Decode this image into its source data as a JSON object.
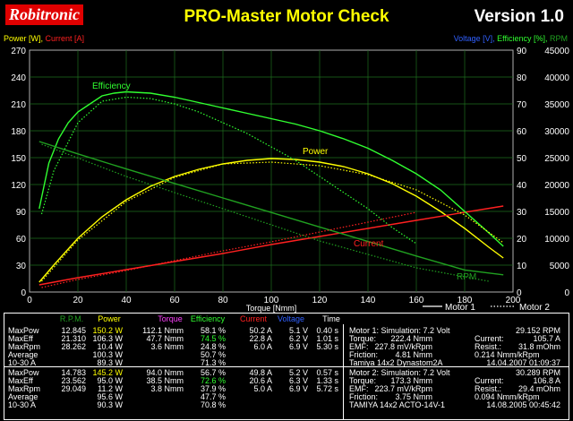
{
  "header": {
    "logo": "Robitronic",
    "title": "PRO-Master Motor Check",
    "version": "Version 1.0"
  },
  "colors": {
    "power": "#ffff00",
    "current": "#ff2020",
    "voltage": "#3060ff",
    "efficiency": "#30ff30",
    "rpm": "#20a020",
    "torque": "#ff40ff"
  },
  "axes": {
    "left_title_power": "Power [W],",
    "left_title_current": "Current [A]",
    "right_title_voltage": "Voltage [V],",
    "right_title_eff": "Efficiency [%],",
    "right_title_rpm": "RPM",
    "xlabel": "Torque [Nmm]"
  },
  "chart_data": {
    "type": "line",
    "xlabel": "Torque [Nmm]",
    "ylabel_left": "Power [W], Current [A]",
    "ylabel_right": "Voltage [V], Efficiency [%], RPM",
    "xlim": [
      0,
      200
    ],
    "xticks": [
      0,
      20,
      40,
      60,
      80,
      100,
      120,
      140,
      160,
      180,
      200
    ],
    "ylim_left": [
      0,
      270
    ],
    "yticks_left": [
      0,
      30,
      60,
      90,
      120,
      150,
      180,
      210,
      240,
      270
    ],
    "ylim_right_voltage_eff": [
      0,
      90
    ],
    "yticks_right_voltage_eff": [
      0,
      10,
      20,
      30,
      40,
      50,
      60,
      70,
      80,
      90
    ],
    "ylim_right_rpm": [
      0,
      45000
    ],
    "yticks_right_rpm": [
      0,
      5000,
      10000,
      15000,
      20000,
      25000,
      30000,
      35000,
      40000,
      45000
    ],
    "grid": true,
    "legend": [
      "Motor 1",
      "Motor 2"
    ],
    "annotations": [
      "Efficiency",
      "Power",
      "Current",
      "RPM"
    ],
    "series": [
      {
        "name": "Power",
        "motor": 1,
        "axis": "left",
        "color": "#ffff00",
        "x": [
          4,
          10,
          20,
          30,
          40,
          50,
          60,
          70,
          80,
          90,
          100,
          110,
          120,
          130,
          140,
          150,
          160,
          170,
          180,
          190,
          196
        ],
        "y": [
          11,
          30,
          60,
          84,
          103,
          118,
          129,
          137,
          143,
          147,
          149,
          148,
          145,
          140,
          132,
          121,
          107,
          90,
          71,
          50,
          38
        ]
      },
      {
        "name": "Current",
        "motor": 1,
        "axis": "left",
        "color": "#ff2020",
        "x": [
          4,
          20,
          40,
          60,
          80,
          100,
          120,
          140,
          160,
          180,
          196
        ],
        "y": [
          8,
          16,
          25,
          34,
          43,
          53,
          62,
          71,
          80,
          89,
          96
        ]
      },
      {
        "name": "Efficiency",
        "motor": 1,
        "axis": "right_pct",
        "color": "#30ff30",
        "x": [
          4,
          8,
          12,
          16,
          20,
          25,
          30,
          35,
          40,
          50,
          60,
          70,
          80,
          90,
          100,
          110,
          120,
          130,
          140,
          150,
          160,
          170,
          180,
          190,
          196
        ],
        "y": [
          31,
          48,
          57,
          63,
          67,
          70,
          73,
          74,
          74.5,
          74,
          72.5,
          70.5,
          68.5,
          66.5,
          64.5,
          62.5,
          60,
          57,
          53.5,
          49,
          44,
          38,
          30,
          22,
          17
        ]
      },
      {
        "name": "RPM",
        "motor": 1,
        "axis": "right_rpm",
        "color": "#20a020",
        "x": [
          4,
          20,
          40,
          60,
          80,
          100,
          120,
          140,
          160,
          180,
          196
        ],
        "y": [
          28000,
          25700,
          22900,
          20200,
          17500,
          14800,
          12100,
          9400,
          6700,
          4100,
          3200
        ]
      },
      {
        "name": "Power",
        "motor": 2,
        "axis": "left",
        "color": "#ffff00",
        "x": [
          5,
          20,
          40,
          60,
          80,
          100,
          120,
          140,
          160,
          180,
          196
        ],
        "y": [
          12,
          58,
          101,
          128,
          143,
          145,
          141,
          131,
          114,
          86,
          55
        ]
      },
      {
        "name": "Current",
        "motor": 2,
        "axis": "left",
        "color": "#ff2020",
        "x": [
          5,
          20,
          40,
          60,
          80,
          100,
          120,
          140,
          160
        ],
        "y": [
          5,
          14,
          24,
          35,
          46,
          56,
          67,
          78,
          89
        ]
      },
      {
        "name": "Efficiency",
        "motor": 2,
        "axis": "right_pct",
        "color": "#30ff30",
        "x": [
          5,
          10,
          20,
          30,
          40,
          50,
          60,
          70,
          80,
          90,
          100,
          110,
          120,
          130,
          140,
          150,
          160
        ],
        "y": [
          29,
          45,
          63,
          71,
          72.5,
          72,
          70,
          67,
          63,
          59,
          54,
          49,
          43,
          37,
          31,
          24,
          18
        ]
      },
      {
        "name": "RPM",
        "motor": 2,
        "axis": "right_rpm",
        "color": "#20a020",
        "x": [
          5,
          40,
          80,
          120,
          160,
          190
        ],
        "y": [
          27500,
          21500,
          15500,
          9500,
          4500,
          2000
        ]
      }
    ]
  },
  "table": {
    "headers": {
      "rpm": "R.P.M.",
      "power": "Power",
      "torque": "Torque",
      "efficiency": "Efficiency",
      "current": "Current",
      "voltage": "Voltage",
      "time": "Time"
    },
    "motor1_rows": [
      {
        "label": "MaxPow",
        "rpm": "12.845",
        "power": "150.2 W",
        "torque": "112.1 Nmm",
        "eff": "58.1 %",
        "current": "50.2 A",
        "voltage": "5.1 V",
        "time": "0.40 s"
      },
      {
        "label": "MaxEff",
        "rpm": "21.310",
        "power": "106.3 W",
        "torque": "47.7 Nmm",
        "eff": "74.5 %",
        "current": "22.8 A",
        "voltage": "6.2 V",
        "time": "1.01 s"
      },
      {
        "label": "MaxRpm",
        "rpm": "28.262",
        "power": "10.4 W",
        "torque": "3.6 Nmm",
        "eff": "24.8 %",
        "current": "6.0 A",
        "voltage": "6.9 V",
        "time": "5.30 s"
      },
      {
        "label": "Average",
        "rpm": "",
        "power": "100.3 W",
        "torque": "",
        "eff": "50.7 %",
        "current": "",
        "voltage": "",
        "time": ""
      },
      {
        "label": "10-30 A",
        "rpm": "",
        "power": "89.3 W",
        "torque": "",
        "eff": "71.3 %",
        "current": "",
        "voltage": "",
        "time": ""
      }
    ],
    "motor2_rows": [
      {
        "label": "MaxPow",
        "rpm": "14.783",
        "power": "145.2 W",
        "torque": "94.0 Nmm",
        "eff": "56.7 %",
        "current": "49.8 A",
        "voltage": "5.2 V",
        "time": "0.57 s"
      },
      {
        "label": "MaxEff",
        "rpm": "23.562",
        "power": "95.0 W",
        "torque": "38.5 Nmm",
        "eff": "72.6 %",
        "current": "20.6 A",
        "voltage": "6.3 V",
        "time": "1.33 s"
      },
      {
        "label": "MaxRpm",
        "rpm": "29.049",
        "power": "11.2 W",
        "torque": "3.8 Nmm",
        "eff": "37.9 %",
        "current": "5.0 A",
        "voltage": "6.9 V",
        "time": "5.72 s"
      },
      {
        "label": "Average",
        "rpm": "",
        "power": "95.6 W",
        "torque": "",
        "eff": "47.7 %",
        "current": "",
        "voltage": "",
        "time": ""
      },
      {
        "label": "10-30 A",
        "rpm": "",
        "power": "90.3 W",
        "torque": "",
        "eff": "70.8 %",
        "current": "",
        "voltage": "",
        "time": ""
      }
    ],
    "motor1_info": {
      "title": "Motor 1: Simulation: 7.2 Volt",
      "rpm": "29.152 RPM",
      "torque_label": "Torque:",
      "torque": "222.4 Nmm",
      "current_label": "Current:",
      "current": "105.7 A",
      "emf_label": "EMF:",
      "emf": "227.8 mV/kRpm",
      "resist_label": "Resist.:",
      "resist": "31.8 mOhm",
      "friction_label": "Friction:",
      "friction": "4.81 Nmm",
      "friction2": "0.214 Nmm/kRpm",
      "name": "Tamiya 14x2 Dynastom2A",
      "date": "14.04.2007 01:09:37"
    },
    "motor2_info": {
      "title": "Motor 2: Simulation: 7.2 Volt",
      "rpm": "30.289 RPM",
      "torque_label": "Torque:",
      "torque": "173.3 Nmm",
      "current_label": "Current:",
      "current": "106.8 A",
      "emf_label": "EMF:",
      "emf": "223.7 mV/kRpm",
      "resist_label": "Resist.:",
      "resist": "29.4 mOhm",
      "friction_label": "Friction:",
      "friction": "3.75 Nmm",
      "friction2": "0.094 Nmm/kRpm",
      "name": "TAMIYA 14x2 ACTO-14V-1",
      "date": "14.08.2005 00:45:42"
    }
  }
}
